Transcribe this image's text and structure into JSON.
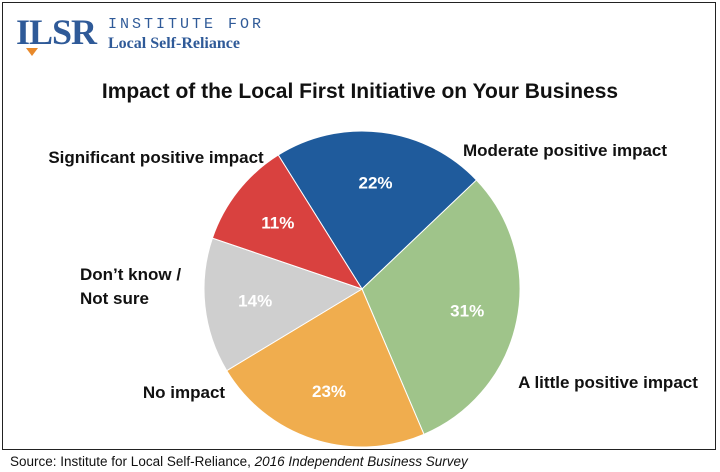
{
  "logo": {
    "mark": "ILSR",
    "line1": "INSTITUTE FOR",
    "line2": "Local Self-Reliance"
  },
  "source": {
    "prefix": "Source: Institute for Local Self-Reliance, ",
    "work": "2016 Independent Business Survey"
  },
  "chart_data": {
    "type": "pie",
    "title": "Impact of the Local First Initiative on Your Business",
    "start_angle_deg": -32,
    "direction": "clockwise",
    "slices": [
      {
        "label": "Moderate positive impact",
        "value": 22,
        "display": "22%",
        "color": "#1f5b9c"
      },
      {
        "label": "A little positive impact",
        "value": 31,
        "display": "31%",
        "color": "#9fc48a"
      },
      {
        "label": "No impact",
        "value": 23,
        "display": "23%",
        "color": "#f0ad4e"
      },
      {
        "label": "Don’t know / Not sure",
        "lines": [
          "Don’t know /",
          "Not sure"
        ],
        "value": 14,
        "display": "14%",
        "color": "#cfcfcf"
      },
      {
        "label": "Significant positive impact",
        "value": 11,
        "display": "11%",
        "color": "#d9413f"
      }
    ]
  }
}
